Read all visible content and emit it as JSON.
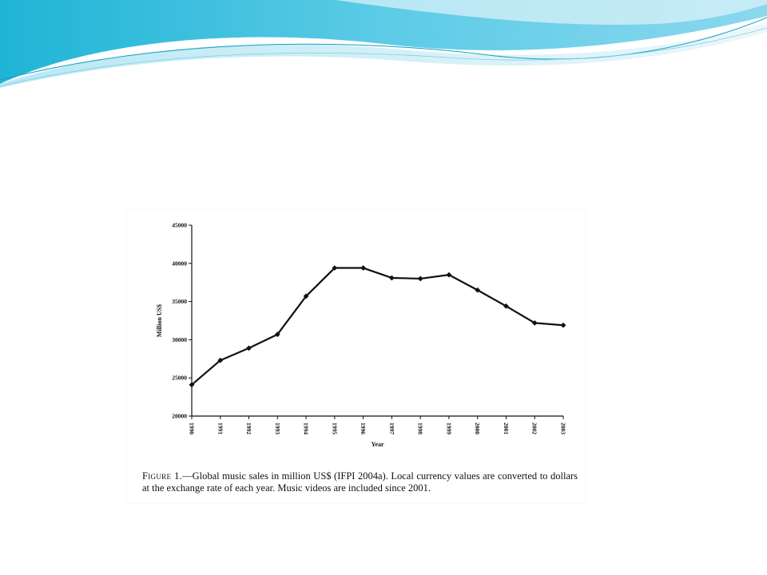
{
  "slide": {
    "banner_colors": [
      "#1fb4d6",
      "#5ccbe6",
      "#aee4f1",
      "#e8f6fa"
    ]
  },
  "figure": {
    "caption_prefix": "Figure 1.",
    "caption_text": "—Global music sales in million US$ (IFPI 2004a). Local currency values are converted to dollars at the exchange rate of each year. Music videos are included since 2001."
  },
  "chart_data": {
    "type": "line",
    "title": "",
    "xlabel": "Year",
    "ylabel": "Million US$",
    "x": [
      "1990",
      "1991",
      "1992",
      "1993",
      "1994",
      "1995",
      "1996",
      "1997",
      "1998",
      "1999",
      "2000",
      "2001",
      "2002",
      "2003"
    ],
    "series": [
      {
        "values": [
          24100,
          27300,
          28900,
          30700,
          35700,
          39400,
          39400,
          38100,
          38000,
          38500,
          36500,
          34400,
          32200,
          31900
        ],
        "color": "#111111",
        "marker": "diamond"
      }
    ],
    "ylim": [
      20000,
      45000
    ],
    "yticks": [
      20000,
      25000,
      30000,
      35000,
      40000,
      45000
    ],
    "grid": false,
    "legend": "none"
  }
}
